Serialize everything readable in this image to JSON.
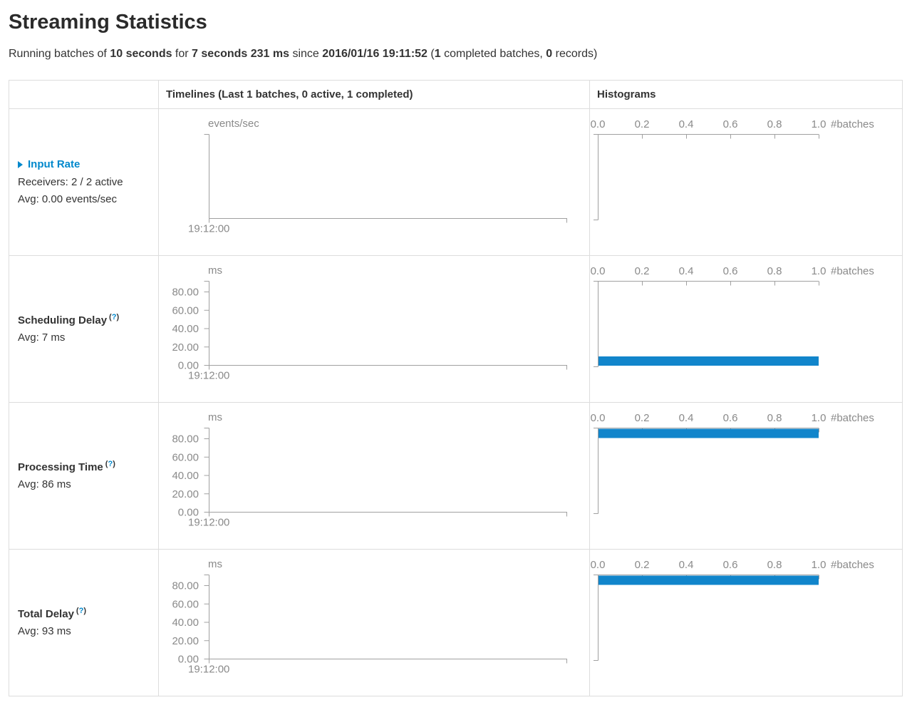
{
  "page": {
    "title": "Streaming Statistics"
  },
  "subtitle": {
    "segments": [
      {
        "text": "Running batches of ",
        "bold": false
      },
      {
        "text": "10 seconds",
        "bold": true
      },
      {
        "text": " for ",
        "bold": false
      },
      {
        "text": "7 seconds 231 ms",
        "bold": true
      },
      {
        "text": " since ",
        "bold": false
      },
      {
        "text": "2016/01/16 19:11:52",
        "bold": true
      },
      {
        "text": " (",
        "bold": false
      },
      {
        "text": "1",
        "bold": true
      },
      {
        "text": " completed batches, ",
        "bold": false
      },
      {
        "text": "0",
        "bold": true
      },
      {
        "text": " records)",
        "bold": false
      }
    ]
  },
  "ui": {
    "help_open": "(",
    "help_mark": "?",
    "help_close": ")"
  },
  "table": {
    "headers": {
      "metric": "",
      "timelines": "Timelines (Last 1 batches, 0 active, 1 completed)",
      "histograms": "Histograms"
    },
    "rows": [
      {
        "id": "input-rate",
        "label": "Input Rate",
        "expandable": true,
        "details": [
          "Receivers: 2 / 2 active",
          "Avg: 0.00 events/sec"
        ],
        "timeline": {
          "unit": "events/sec",
          "y_ticks": [],
          "x_labels": [
            "19:12:00"
          ]
        },
        "histogram": {
          "x_ticks": [
            "0.0",
            "0.2",
            "0.4",
            "0.6",
            "0.8",
            "1.0"
          ],
          "axis_label": "#batches",
          "bar": null
        }
      },
      {
        "id": "scheduling-delay",
        "label": "Scheduling Delay",
        "has_help": true,
        "details": [
          "Avg: 7 ms"
        ],
        "timeline": {
          "unit": "ms",
          "y_ticks": [
            "80.00",
            "60.00",
            "40.00",
            "20.00",
            "0.00"
          ],
          "x_labels": [
            "19:12:00"
          ]
        },
        "histogram": {
          "x_ticks": [
            "0.0",
            "0.2",
            "0.4",
            "0.6",
            "0.8",
            "1.0"
          ],
          "axis_label": "#batches",
          "bar": {
            "batches": 1,
            "extent": 1.0,
            "position": "bottom"
          }
        }
      },
      {
        "id": "processing-time",
        "label": "Processing Time",
        "has_help": true,
        "details": [
          "Avg: 86 ms"
        ],
        "timeline": {
          "unit": "ms",
          "y_ticks": [
            "80.00",
            "60.00",
            "40.00",
            "20.00",
            "0.00"
          ],
          "x_labels": [
            "19:12:00"
          ]
        },
        "histogram": {
          "x_ticks": [
            "0.0",
            "0.2",
            "0.4",
            "0.6",
            "0.8",
            "1.0"
          ],
          "axis_label": "#batches",
          "bar": {
            "batches": 1,
            "extent": 1.0,
            "position": "top"
          }
        }
      },
      {
        "id": "total-delay",
        "label": "Total Delay",
        "has_help": true,
        "details": [
          "Avg: 93 ms"
        ],
        "timeline": {
          "unit": "ms",
          "y_ticks": [
            "80.00",
            "60.00",
            "40.00",
            "20.00",
            "0.00"
          ],
          "x_labels": [
            "19:12:00"
          ]
        },
        "histogram": {
          "x_ticks": [
            "0.0",
            "0.2",
            "0.4",
            "0.6",
            "0.8",
            "1.0"
          ],
          "axis_label": "#batches",
          "bar": {
            "batches": 1,
            "extent": 1.0,
            "position": "top"
          }
        }
      }
    ]
  },
  "chart_data": [
    {
      "row": "Input Rate",
      "type": "line",
      "ylabel": "events/sec",
      "x_ticks": [
        "19:12:00"
      ],
      "series": [],
      "note": "no data plotted"
    },
    {
      "row": "Scheduling Delay",
      "type": "bar",
      "orientation": "horizontal",
      "xlabel": "#batches",
      "xlim": [
        0.0,
        1.0
      ],
      "x_ticks": [
        0.0,
        0.2,
        0.4,
        0.6,
        0.8,
        1.0
      ],
      "ylabel": "ms",
      "ylim": [
        0,
        90
      ],
      "bars": [
        {
          "bin_ms": 0,
          "batches": 1
        }
      ]
    },
    {
      "row": "Processing Time",
      "type": "bar",
      "orientation": "horizontal",
      "xlabel": "#batches",
      "xlim": [
        0.0,
        1.0
      ],
      "x_ticks": [
        0.0,
        0.2,
        0.4,
        0.6,
        0.8,
        1.0
      ],
      "ylabel": "ms",
      "ylim": [
        0,
        90
      ],
      "bars": [
        {
          "bin_ms": 86,
          "batches": 1
        }
      ]
    },
    {
      "row": "Total Delay",
      "type": "bar",
      "orientation": "horizontal",
      "xlabel": "#batches",
      "xlim": [
        0.0,
        1.0
      ],
      "x_ticks": [
        0.0,
        0.2,
        0.4,
        0.6,
        0.8,
        1.0
      ],
      "ylabel": "ms",
      "ylim": [
        0,
        90
      ],
      "bars": [
        {
          "bin_ms": 93,
          "batches": 1
        }
      ]
    }
  ],
  "colors": {
    "accent": "#0088cc",
    "histogram_bar": "#1185cb",
    "axis_line": "#a0a0a0",
    "chart_text": "#8a8a8a",
    "table_border": "#dddddd",
    "text": "#333333"
  }
}
